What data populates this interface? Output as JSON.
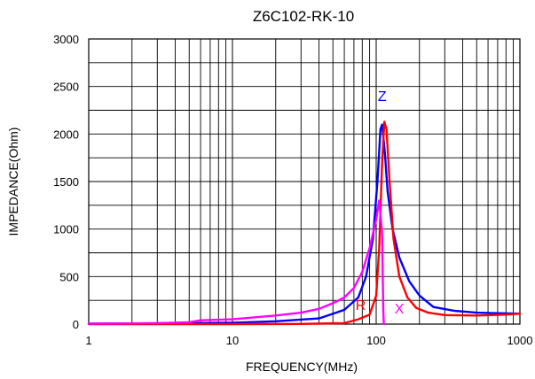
{
  "chart_data": {
    "type": "line",
    "title": "Z6C102-RK-10",
    "xlabel": "FREQUENCY(MHz)",
    "ylabel": "IMPEDANCE(Ohm)",
    "x_scale": "log",
    "xlim": [
      1,
      1000
    ],
    "ylim": [
      0,
      3000
    ],
    "x_ticks": [
      "1",
      "10",
      "100",
      "1000"
    ],
    "y_ticks": [
      "0",
      "500",
      "1000",
      "1500",
      "2000",
      "2500",
      "3000"
    ],
    "grid": true,
    "series": [
      {
        "name": "Z",
        "color": "#0000ff",
        "points": [
          [
            1,
            5
          ],
          [
            5,
            10
          ],
          [
            10,
            15
          ],
          [
            20,
            30
          ],
          [
            40,
            60
          ],
          [
            60,
            150
          ],
          [
            75,
            280
          ],
          [
            85,
            500
          ],
          [
            95,
            900
          ],
          [
            102,
            1500
          ],
          [
            107,
            2050
          ],
          [
            110,
            2100
          ],
          [
            115,
            1800
          ],
          [
            120,
            1400
          ],
          [
            130,
            1000
          ],
          [
            145,
            700
          ],
          [
            170,
            450
          ],
          [
            200,
            300
          ],
          [
            250,
            180
          ],
          [
            350,
            140
          ],
          [
            500,
            120
          ],
          [
            700,
            115
          ],
          [
            1000,
            110
          ]
        ]
      },
      {
        "name": "R",
        "color": "#ff0000",
        "points": [
          [
            1,
            0
          ],
          [
            10,
            0
          ],
          [
            30,
            2
          ],
          [
            60,
            10
          ],
          [
            75,
            50
          ],
          [
            90,
            100
          ],
          [
            100,
            300
          ],
          [
            105,
            800
          ],
          [
            110,
            1700
          ],
          [
            114,
            2130
          ],
          [
            118,
            2050
          ],
          [
            124,
            1500
          ],
          [
            132,
            900
          ],
          [
            145,
            500
          ],
          [
            165,
            280
          ],
          [
            190,
            170
          ],
          [
            230,
            120
          ],
          [
            300,
            95
          ],
          [
            500,
            90
          ],
          [
            800,
            100
          ],
          [
            1000,
            110
          ]
        ]
      },
      {
        "name": "X",
        "color": "#ff00ff",
        "points": [
          [
            1,
            5
          ],
          [
            3,
            10
          ],
          [
            5,
            20
          ],
          [
            6,
            40
          ],
          [
            10,
            50
          ],
          [
            20,
            90
          ],
          [
            30,
            120
          ],
          [
            40,
            160
          ],
          [
            50,
            220
          ],
          [
            60,
            280
          ],
          [
            70,
            380
          ],
          [
            80,
            550
          ],
          [
            90,
            800
          ],
          [
            100,
            1100
          ],
          [
            105,
            1300
          ],
          [
            110,
            950
          ],
          [
            112,
            150
          ],
          [
            113,
            0
          ]
        ]
      }
    ]
  }
}
